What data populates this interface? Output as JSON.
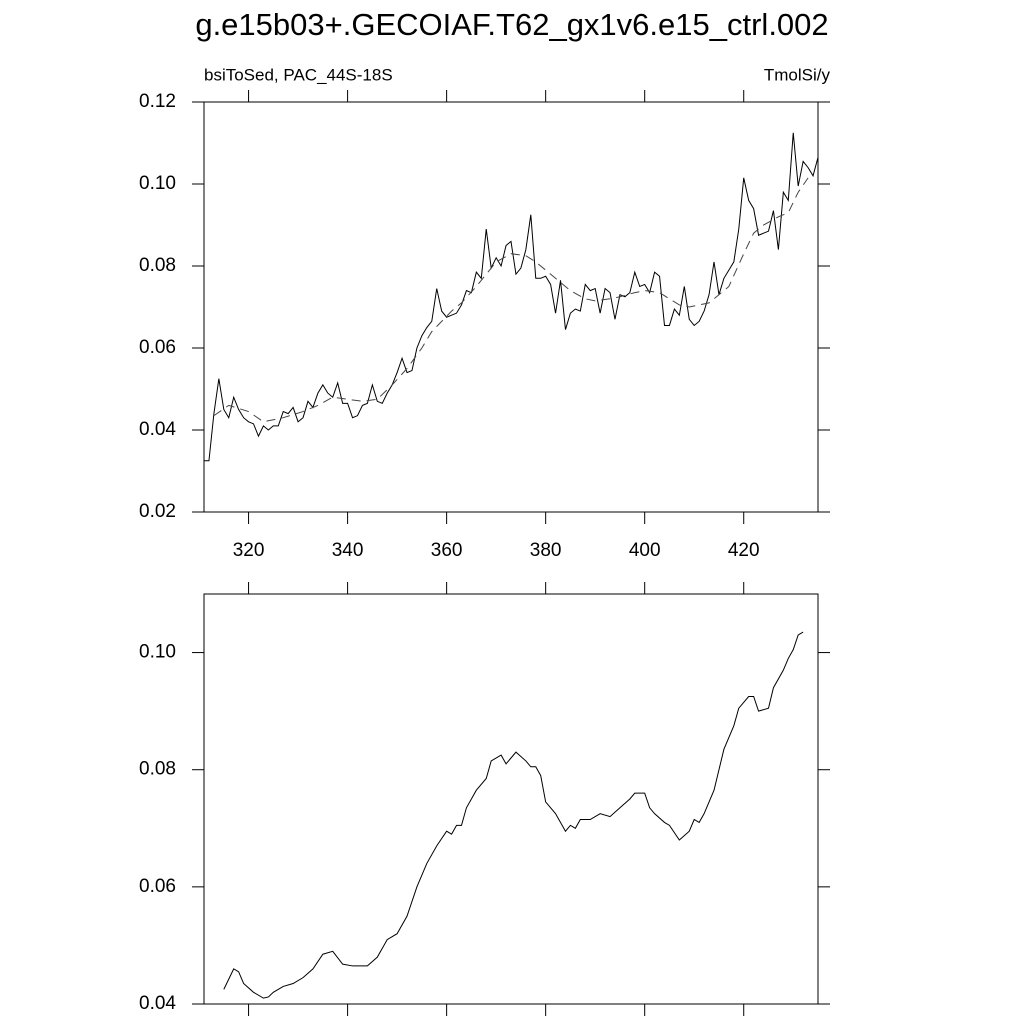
{
  "title": "g.e15b03+.GECOIAF.T62_gx1v6.e15_ctrl.002",
  "chart_data": [
    {
      "type": "line",
      "left_label": "bsiToSed, PAC_44S-18S",
      "right_label": "TmolSi/y",
      "xlim": [
        311,
        435
      ],
      "xticks": [
        320,
        340,
        360,
        380,
        400,
        420
      ],
      "ylim": [
        0.02,
        0.12
      ],
      "yticks": [
        0.02,
        0.04,
        0.06,
        0.08,
        {
          "value": 0.1,
          "label": "0.10"
        },
        0.12
      ],
      "series": [
        {
          "color": "#000000",
          "line_style": "solid",
          "x": [
            311,
            312,
            313,
            314,
            315,
            316,
            317,
            318,
            319,
            320,
            321,
            322,
            323,
            324,
            325,
            326,
            327,
            328,
            329,
            330,
            331,
            332,
            333,
            334,
            335,
            336,
            337,
            338,
            339,
            340,
            341,
            342,
            343,
            344,
            345,
            346,
            347,
            348,
            349,
            350,
            351,
            352,
            353,
            354,
            355,
            356,
            357,
            358,
            359,
            360,
            361,
            362,
            363,
            364,
            365,
            366,
            367,
            368,
            369,
            370,
            371,
            372,
            373,
            374,
            375,
            376,
            377,
            378,
            379,
            380,
            381,
            382,
            383,
            384,
            385,
            386,
            387,
            388,
            389,
            390,
            391,
            392,
            393,
            394,
            395,
            396,
            397,
            398,
            399,
            400,
            401,
            402,
            403,
            404,
            405,
            406,
            407,
            408,
            409,
            410,
            411,
            412,
            413,
            414,
            415,
            416,
            417,
            418,
            419,
            420,
            421,
            422,
            423,
            424,
            425,
            426,
            427,
            428,
            429,
            430,
            431,
            432,
            433,
            434,
            435
          ],
          "values": [
            0.0325,
            0.0325,
            0.044,
            0.0525,
            0.045,
            0.043,
            0.048,
            0.045,
            0.043,
            0.042,
            0.0415,
            0.0385,
            0.041,
            0.04,
            0.041,
            0.041,
            0.0445,
            0.044,
            0.0455,
            0.042,
            0.043,
            0.047,
            0.0455,
            0.049,
            0.051,
            0.049,
            0.048,
            0.0515,
            0.0465,
            0.0465,
            0.043,
            0.0435,
            0.046,
            0.0465,
            0.051,
            0.047,
            0.0465,
            0.049,
            0.051,
            0.054,
            0.0575,
            0.054,
            0.0545,
            0.06,
            0.063,
            0.065,
            0.0665,
            0.0745,
            0.069,
            0.0675,
            0.068,
            0.0685,
            0.0705,
            0.074,
            0.0735,
            0.0785,
            0.077,
            0.089,
            0.0795,
            0.082,
            0.08,
            0.085,
            0.086,
            0.078,
            0.0795,
            0.084,
            0.0925,
            0.077,
            0.077,
            0.0775,
            0.0755,
            0.0685,
            0.0765,
            0.0645,
            0.0685,
            0.0695,
            0.069,
            0.0755,
            0.074,
            0.0745,
            0.0685,
            0.0745,
            0.0735,
            0.067,
            0.073,
            0.0725,
            0.0735,
            0.0785,
            0.075,
            0.0755,
            0.0735,
            0.0785,
            0.0775,
            0.0655,
            0.0655,
            0.0695,
            0.068,
            0.075,
            0.067,
            0.0655,
            0.0665,
            0.069,
            0.073,
            0.081,
            0.073,
            0.077,
            0.079,
            0.081,
            0.089,
            0.1015,
            0.096,
            0.094,
            0.0875,
            0.088,
            0.0885,
            0.0935,
            0.084,
            0.098,
            0.096,
            0.1125,
            0.0995,
            0.1055,
            0.104,
            0.102,
            0.1065
          ]
        },
        {
          "color": "#444444",
          "line_style": "dashed",
          "x": [
            313,
            316,
            320,
            323,
            327,
            331,
            334,
            337,
            340,
            343,
            346,
            349,
            352,
            355,
            357,
            359,
            361,
            363,
            366,
            368,
            370,
            373,
            376,
            378,
            380,
            383,
            385,
            388,
            390,
            393,
            395,
            398,
            400,
            403,
            405,
            407,
            409,
            411,
            413,
            415,
            417,
            420,
            422,
            424,
            427,
            429,
            431,
            433
          ],
          "values": [
            0.0435,
            0.046,
            0.0445,
            0.042,
            0.043,
            0.0445,
            0.046,
            0.048,
            0.0475,
            0.047,
            0.0475,
            0.051,
            0.055,
            0.06,
            0.064,
            0.0665,
            0.069,
            0.071,
            0.075,
            0.078,
            0.081,
            0.083,
            0.0825,
            0.081,
            0.079,
            0.076,
            0.074,
            0.072,
            0.0715,
            0.072,
            0.0725,
            0.0735,
            0.074,
            0.0735,
            0.072,
            0.0705,
            0.07,
            0.0705,
            0.071,
            0.073,
            0.075,
            0.083,
            0.088,
            0.09,
            0.092,
            0.093,
            0.098,
            0.1015
          ]
        }
      ]
    },
    {
      "type": "line",
      "xlim": [
        311,
        435
      ],
      "xticks": [
        320,
        340,
        360,
        380,
        400,
        420
      ],
      "ylim": [
        0.04,
        0.11
      ],
      "yticks": [
        0.04,
        0.06,
        0.08,
        {
          "value": 0.1,
          "label": "0.10"
        }
      ],
      "series": [
        {
          "color": "#000000",
          "line_style": "solid",
          "x": [
            315,
            317,
            318,
            319,
            321,
            323,
            324,
            325,
            327,
            329,
            331,
            333,
            335,
            337,
            339,
            341,
            344,
            346,
            348,
            350,
            352,
            354,
            356,
            358,
            360,
            361,
            362,
            363,
            364,
            366,
            368,
            369,
            371,
            372,
            373,
            374,
            376,
            377,
            378,
            379,
            380,
            382,
            384,
            385,
            386,
            387,
            389,
            391,
            393,
            395,
            397,
            398,
            400,
            401,
            402,
            404,
            405,
            407,
            409,
            410,
            411,
            412,
            414,
            416,
            418,
            419,
            421,
            422,
            423,
            425,
            426,
            428,
            429,
            430,
            431,
            432
          ],
          "values": [
            0.0425,
            0.046,
            0.0455,
            0.0435,
            0.042,
            0.041,
            0.0412,
            0.042,
            0.043,
            0.0435,
            0.0445,
            0.046,
            0.0485,
            0.049,
            0.0468,
            0.0465,
            0.0465,
            0.048,
            0.051,
            0.052,
            0.055,
            0.06,
            0.064,
            0.067,
            0.0695,
            0.069,
            0.0705,
            0.0705,
            0.0735,
            0.0765,
            0.0785,
            0.0815,
            0.0825,
            0.081,
            0.082,
            0.083,
            0.0815,
            0.0805,
            0.0805,
            0.079,
            0.0745,
            0.0725,
            0.0695,
            0.0705,
            0.07,
            0.0715,
            0.0715,
            0.0725,
            0.072,
            0.0735,
            0.075,
            0.076,
            0.076,
            0.0735,
            0.0725,
            0.071,
            0.0705,
            0.068,
            0.0695,
            0.0715,
            0.071,
            0.0725,
            0.0765,
            0.0835,
            0.0875,
            0.0905,
            0.0925,
            0.0925,
            0.09,
            0.0905,
            0.094,
            0.097,
            0.099,
            0.1005,
            0.103,
            0.1035
          ]
        }
      ]
    }
  ]
}
